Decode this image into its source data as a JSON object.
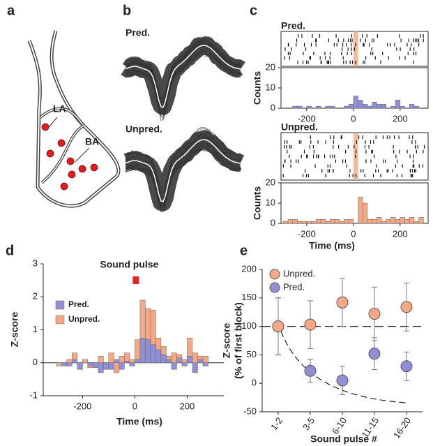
{
  "panel_labels": [
    "a",
    "b",
    "c",
    "d",
    "e"
  ],
  "diagram": {
    "labels": [
      "LA",
      "BA"
    ]
  },
  "waveforms": {
    "labels": [
      "Pred.",
      "Unpred."
    ]
  },
  "chart_data": [
    {
      "type": "histogram",
      "title": "Pred.",
      "ylabel": "Counts",
      "color": "#8f8fd6",
      "bins": [
        -300,
        -280,
        -260,
        -240,
        -220,
        -200,
        -180,
        -160,
        -140,
        -120,
        -100,
        -80,
        -60,
        -40,
        -20,
        0,
        20,
        40,
        60,
        80,
        100,
        120,
        140,
        160,
        180,
        200,
        220,
        240,
        260,
        280,
        300
      ],
      "values": [
        0,
        0,
        1,
        1,
        0,
        1,
        0,
        1,
        0,
        1,
        1,
        0,
        0,
        1,
        2,
        6,
        4,
        2,
        1,
        3,
        2,
        2,
        0,
        1,
        4,
        1,
        0,
        2,
        1,
        0
      ],
      "xlim": [
        -310,
        320
      ],
      "xticks": [
        -200,
        0,
        200
      ],
      "ylim": [
        0,
        20
      ],
      "yticks": [
        0,
        10,
        20
      ]
    },
    {
      "type": "histogram",
      "title": "Unpred.",
      "ylabel": "Counts",
      "xlabel": "Time (ms)",
      "color": "#f6a886",
      "bins": [
        -300,
        -280,
        -260,
        -240,
        -220,
        -200,
        -180,
        -160,
        -140,
        -120,
        -100,
        -80,
        -60,
        -40,
        -20,
        0,
        20,
        40,
        60,
        80,
        100,
        120,
        140,
        160,
        180,
        200,
        220,
        240,
        260,
        280,
        300
      ],
      "values": [
        1,
        2,
        2,
        1,
        1,
        1,
        1,
        2,
        2,
        1,
        2,
        2,
        1,
        2,
        2,
        0,
        13,
        10,
        2,
        2,
        3,
        1,
        2,
        3,
        2,
        3,
        2,
        3,
        1,
        3
      ],
      "xlim": [
        -310,
        320
      ],
      "xticks": [
        -200,
        0,
        200
      ],
      "ylim": [
        0,
        20
      ],
      "yticks": [
        0,
        10,
        20
      ]
    },
    {
      "type": "histogram",
      "title": "Sound pulse",
      "xlabel": "Time (ms)",
      "ylabel": "Z-score",
      "bins": [
        -300,
        -280,
        -260,
        -240,
        -220,
        -200,
        -180,
        -160,
        -140,
        -120,
        -100,
        -80,
        -60,
        -40,
        -20,
        0,
        20,
        40,
        60,
        80,
        100,
        120,
        140,
        160,
        180,
        200,
        220,
        240,
        260,
        280,
        300
      ],
      "series": [
        {
          "name": "Unpred.",
          "color": "#f6a886",
          "values": [
            -0.1,
            0,
            0.1,
            0.3,
            -0.2,
            0.1,
            -0.15,
            -0.1,
            0.2,
            -0.1,
            0.3,
            -0.3,
            0.2,
            0.3,
            0.1,
            0.7,
            1.9,
            1.65,
            1.6,
            0.75,
            0.5,
            0.2,
            0.3,
            0.25,
            0.1,
            0.75,
            0.3,
            0.2,
            0.2,
            0
          ]
        },
        {
          "name": "Pred.",
          "color": "#8f8fd6",
          "values": [
            0,
            -0.1,
            -0.1,
            0.1,
            -0.2,
            0,
            -0.1,
            -0.15,
            -0.3,
            -0.2,
            -0.2,
            0.1,
            -0.2,
            0.05,
            -0.1,
            0.1,
            0.75,
            0.7,
            0.55,
            0.4,
            0.25,
            0.1,
            -0.2,
            0.15,
            -0.1,
            0.2,
            -0.3,
            0.1,
            -0.1,
            0
          ]
        }
      ],
      "stimulus_window": [
        0,
        15
      ],
      "stimulus_color": "#e8231e",
      "xlim": [
        -350,
        340
      ],
      "xticks": [
        -200,
        0,
        200
      ],
      "ylim": [
        -1,
        3
      ],
      "yticks": [
        -1,
        0,
        1,
        2,
        3
      ]
    },
    {
      "type": "errorbar",
      "xlabel": "Sound pulse #",
      "ylabel": [
        "Z-score",
        "(% of first block)"
      ],
      "categories": [
        "1-2",
        "3-5",
        "6-10",
        "11-15",
        "16-20"
      ],
      "series": [
        {
          "name": "Unpred.",
          "color": "#f6a886",
          "values": [
            100,
            103,
            142,
            122,
            134
          ],
          "errors": [
            50,
            42,
            42,
            47,
            42
          ]
        },
        {
          "name": "Pred.",
          "color": "#8f8fd6",
          "values": [
            100,
            22,
            5,
            52,
            30
          ],
          "errors": [
            50,
            20,
            25,
            28,
            25
          ]
        }
      ],
      "reference_line": 100,
      "ylim": [
        -50,
        200
      ],
      "yticks": [
        -50,
        0,
        50,
        100,
        150,
        200
      ]
    }
  ]
}
